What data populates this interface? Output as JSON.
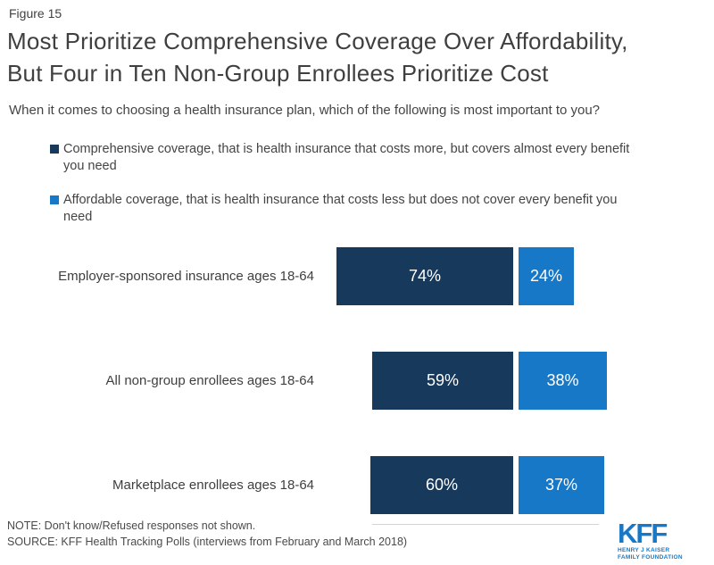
{
  "figure_label": "Figure 15",
  "title_line1": "Most Prioritize Comprehensive Coverage Over Affordability,",
  "title_line2": "But Four in Ten Non-Group Enrollees Prioritize Cost",
  "question": "When it comes to choosing a health insurance plan, which of the following is most important to you?",
  "legend": [
    {
      "label": "Comprehensive coverage, that is health insurance that costs more, but covers almost every benefit you need",
      "color": "#17395B"
    },
    {
      "label": "Affordable coverage, that is health insurance that costs less but does not cover every benefit you need",
      "color": "#1878C8"
    }
  ],
  "chart_data": {
    "type": "bar",
    "orientation": "horizontal",
    "title": "Most Prioritize Comprehensive Coverage Over Affordability, But Four in Ten Non-Group Enrollees Prioritize Cost",
    "categories": [
      "Employer-sponsored insurance ages 18-64",
      "All non-group enrollees ages 18-64",
      "Marketplace enrollees ages 18-64"
    ],
    "series": [
      {
        "name": "Comprehensive coverage",
        "color": "#17395B",
        "values": [
          74,
          59,
          60
        ]
      },
      {
        "name": "Affordable coverage",
        "color": "#1878C8",
        "values": [
          24,
          38,
          37
        ]
      }
    ],
    "value_suffix": "%",
    "xlim": [
      0,
      100
    ],
    "grid": false,
    "legend_position": "top",
    "data_labels": "inside-center"
  },
  "footer": {
    "note": "NOTE: Don't know/Refused responses not shown.",
    "source": "SOURCE: KFF Health Tracking Polls (interviews from February and March 2018)"
  },
  "logo": {
    "text": "KFF",
    "tagline_line1": "HENRY J KAISER",
    "tagline_line2": "FAMILY FOUNDATION",
    "color": "#1878C8"
  }
}
